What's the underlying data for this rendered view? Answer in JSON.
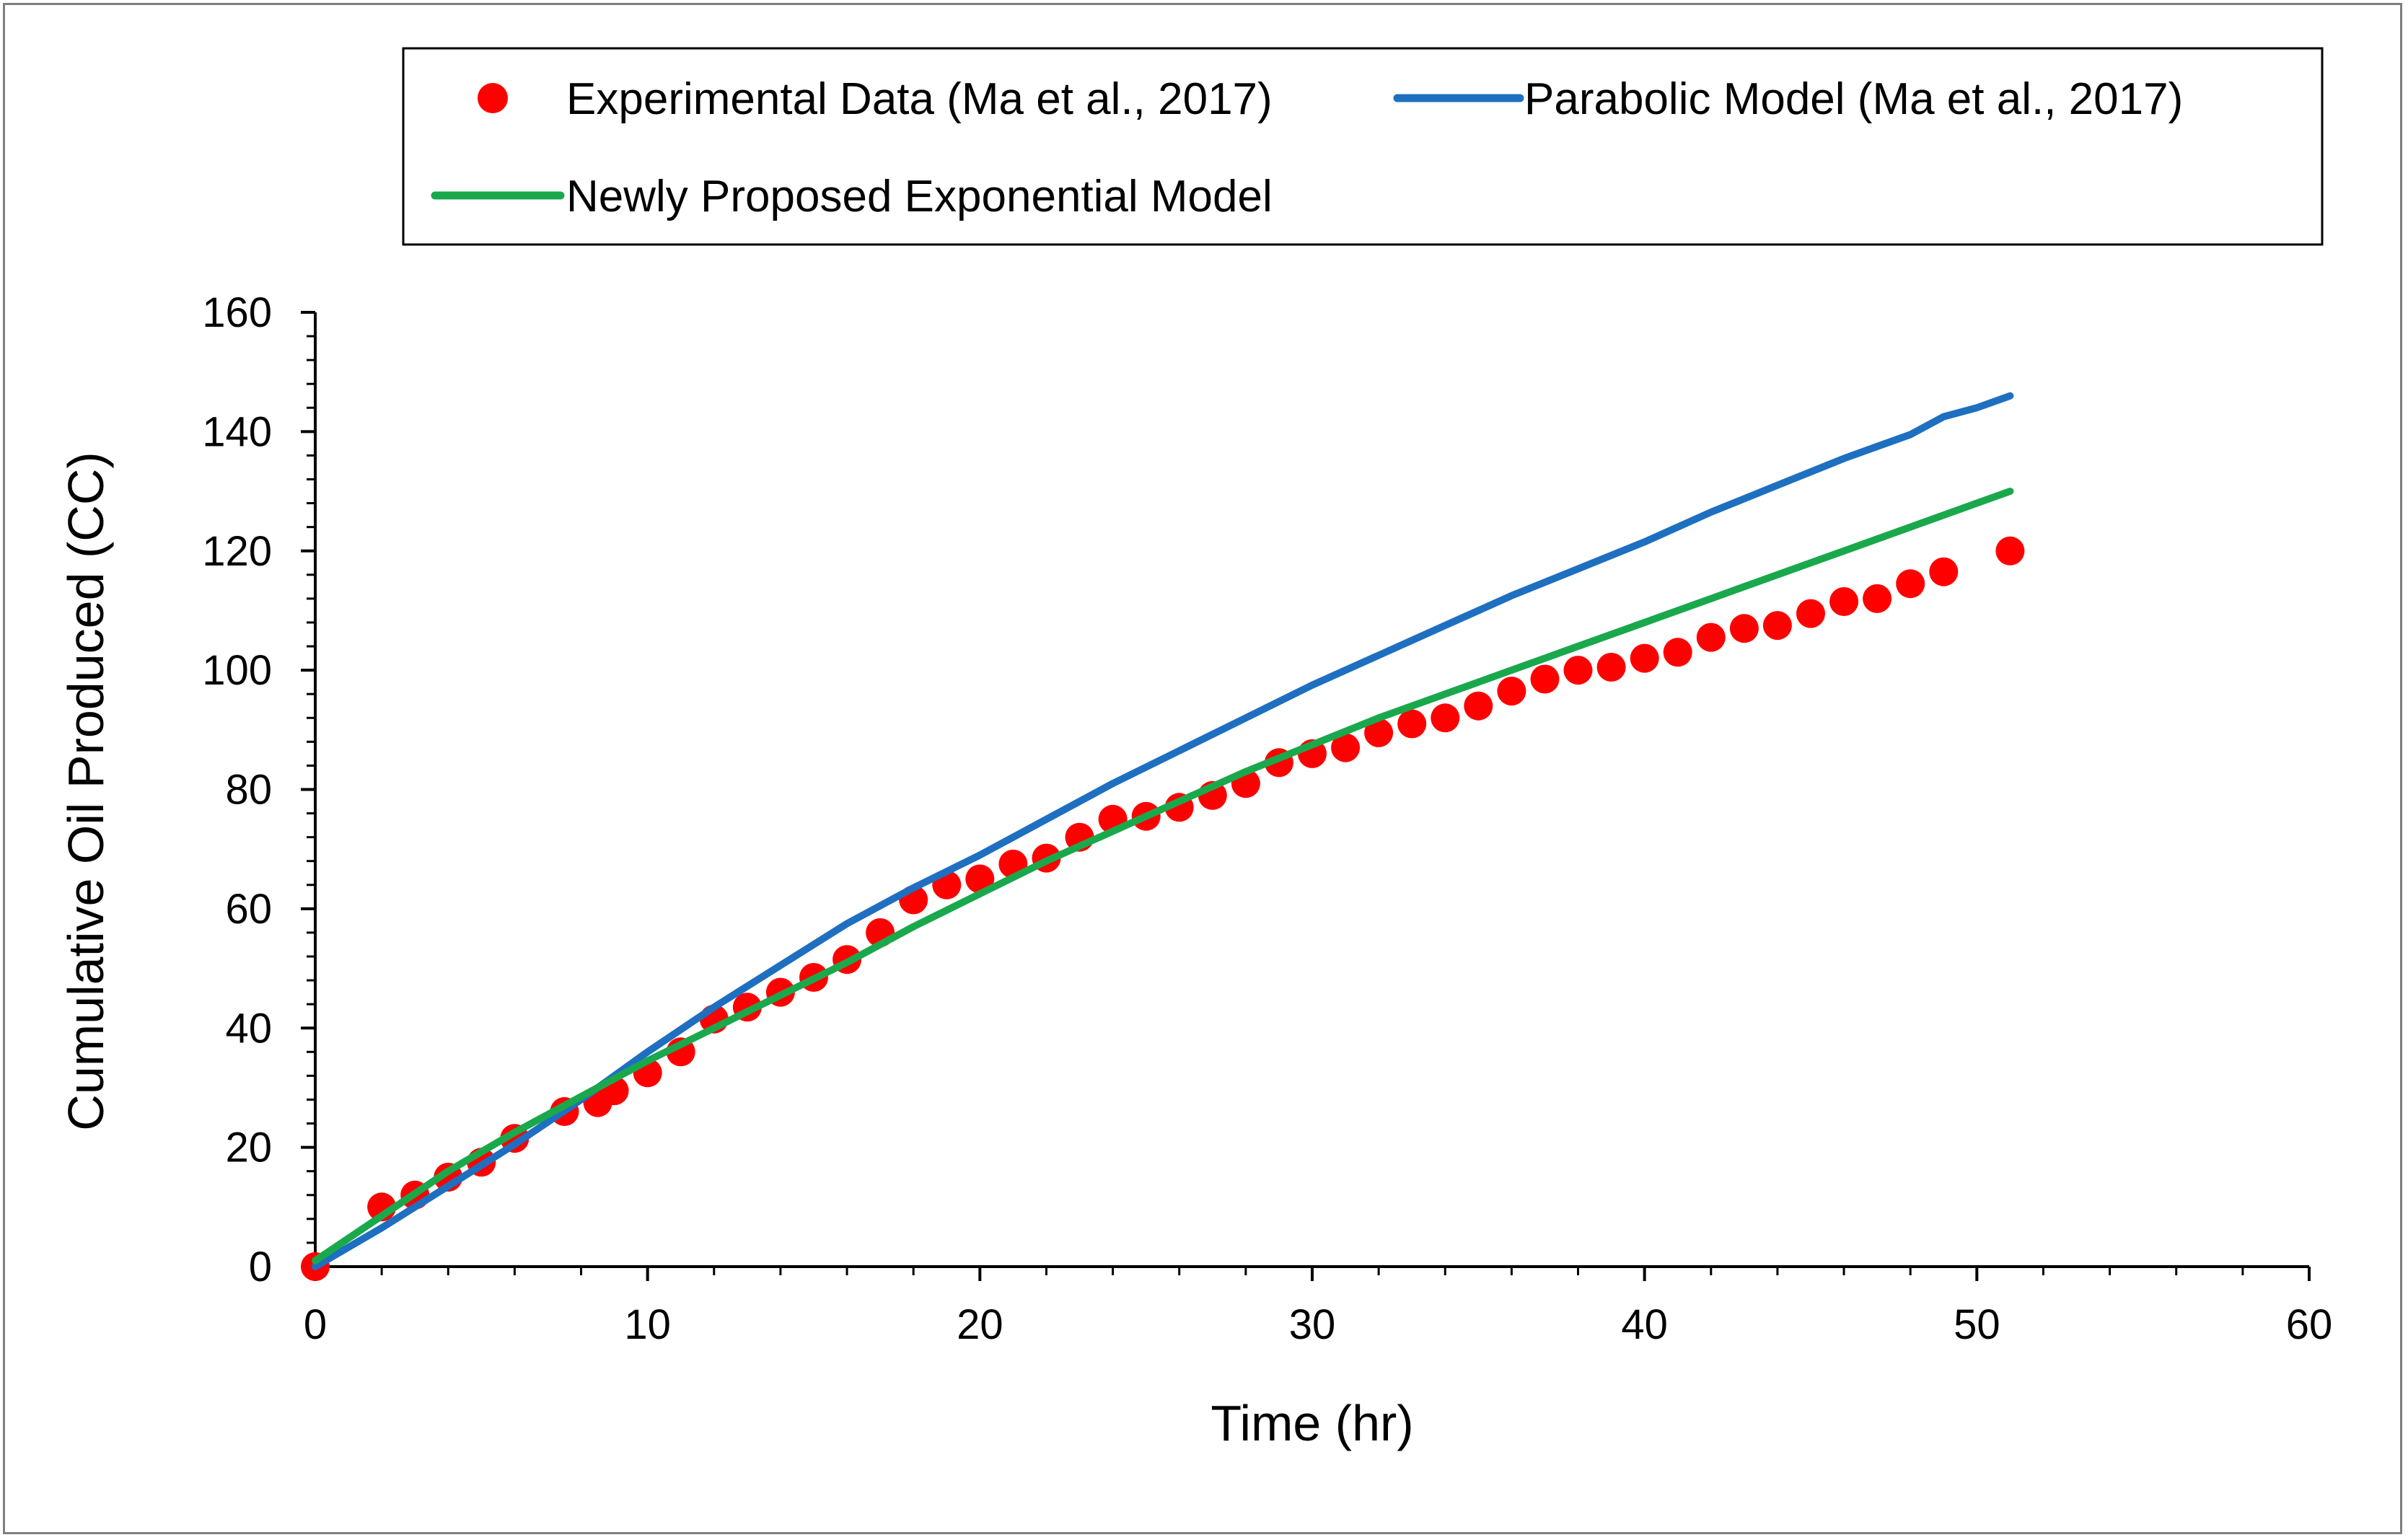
{
  "chart_data": {
    "type": "scatter",
    "title": "",
    "xlabel": "Time (hr)",
    "ylabel": "Cumulative Oil Produced (CC)",
    "xlim": [
      0,
      60
    ],
    "ylim": [
      0,
      160
    ],
    "x_ticks": [
      0,
      10,
      20,
      30,
      40,
      50,
      60
    ],
    "y_ticks": [
      0,
      20,
      40,
      60,
      80,
      100,
      120,
      140,
      160
    ],
    "x_tick_labels": [
      "0",
      "10",
      "20",
      "30",
      "40",
      "50",
      "60"
    ],
    "y_tick_labels": [
      "0",
      "20",
      "40",
      "60",
      "80",
      "100",
      "120",
      "140",
      "160"
    ],
    "grid": false,
    "legend_position": "top",
    "series": [
      {
        "name": "Experimental Data (Ma et al., 2017)",
        "kind": "scatter",
        "color": "#ff0000",
        "x": [
          0,
          2,
          3,
          4,
          5,
          6,
          7.5,
          8.5,
          9,
          10,
          11,
          12,
          13,
          14,
          15,
          16,
          17,
          18,
          19,
          20,
          21,
          22,
          23,
          24,
          25,
          26,
          27,
          28,
          29,
          30,
          31,
          32,
          33,
          34,
          35,
          36,
          37,
          38,
          39,
          40,
          41,
          42,
          43,
          44,
          45,
          46,
          47,
          48,
          49,
          51
        ],
        "y": [
          0,
          10,
          12,
          15,
          17.5,
          21.5,
          26,
          27.5,
          29.5,
          32.5,
          36,
          41.5,
          43.5,
          46,
          48.5,
          51.5,
          56,
          61.5,
          64,
          65,
          67.5,
          68.5,
          72,
          75,
          75.5,
          77,
          79,
          81,
          84.5,
          86,
          87,
          89.5,
          91,
          92,
          94,
          96.5,
          98.5,
          100,
          100.5,
          102,
          103,
          105.5,
          107,
          107.5,
          109.5,
          111.5,
          112,
          114.5,
          116.5,
          120
        ]
      },
      {
        "name": "Parabolic Model (Ma et al., 2017)",
        "kind": "line",
        "color": "#1f6fc0",
        "x": [
          0,
          2,
          4,
          6,
          8,
          10,
          12,
          14,
          16,
          18,
          20,
          22,
          24,
          26,
          28,
          30,
          32,
          34,
          36,
          38,
          40,
          42,
          44,
          46,
          47,
          48,
          48.5,
          49,
          50,
          51
        ],
        "y": [
          0,
          6.5,
          13.5,
          20.5,
          28,
          36,
          43.5,
          50.5,
          57.5,
          63.5,
          69,
          75,
          81,
          86.5,
          92,
          97.5,
          102.5,
          107.5,
          112.5,
          117,
          121.5,
          126.5,
          131,
          135.5,
          137.5,
          139.5,
          141,
          142.5,
          144,
          146
        ]
      },
      {
        "name": "Newly Proposed Exponential Model",
        "kind": "line",
        "color": "#1aa84c",
        "x": [
          0,
          2,
          4,
          6,
          8,
          10,
          12,
          14,
          16,
          18,
          20,
          22,
          24,
          26,
          28,
          30,
          32,
          34,
          36,
          38,
          40,
          42,
          44,
          46,
          48,
          50,
          51
        ],
        "y": [
          1,
          8.5,
          16,
          22.5,
          28.5,
          34.5,
          40,
          45.5,
          51,
          57,
          62.5,
          68,
          73,
          78,
          83,
          87.5,
          92,
          96,
          100,
          104,
          108,
          112,
          116,
          120,
          124,
          128,
          130
        ]
      }
    ]
  }
}
